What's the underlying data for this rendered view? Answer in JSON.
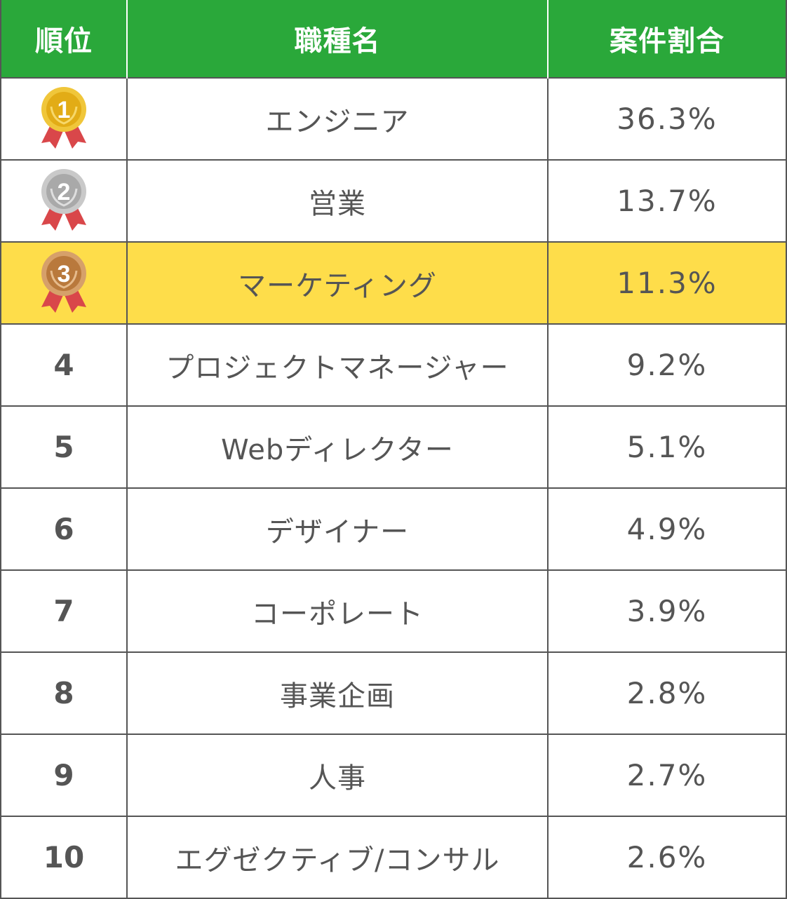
{
  "header": {
    "rank": "順位",
    "job": "職種名",
    "share": "案件割合"
  },
  "colors": {
    "header_bg": "#2aa83a",
    "highlight_row": "#fedd4a",
    "gold": "#e7b61f",
    "silver": "#b4b4b4",
    "bronze": "#c48a4e",
    "ribbon": "#d9474a"
  },
  "rows": [
    {
      "rank": "1",
      "medal": "gold-medal-icon",
      "job": "エンジニア",
      "share": "36.3%"
    },
    {
      "rank": "2",
      "medal": "silver-medal-icon",
      "job": "営業",
      "share": "13.7%"
    },
    {
      "rank": "3",
      "medal": "bronze-medal-icon",
      "job": "マーケティング",
      "share": "11.3%",
      "highlighted": true
    },
    {
      "rank": "4",
      "job": "プロジェクトマネージャー",
      "share": "9.2%"
    },
    {
      "rank": "5",
      "job": "Webディレクター",
      "share": "5.1%"
    },
    {
      "rank": "6",
      "job": "デザイナー",
      "share": "4.9%"
    },
    {
      "rank": "7",
      "job": "コーポレート",
      "share": "3.9%"
    },
    {
      "rank": "8",
      "job": "事業企画",
      "share": "2.8%"
    },
    {
      "rank": "9",
      "job": "人事",
      "share": "2.7%"
    },
    {
      "rank": "10",
      "job": "エグゼクティブ/コンサル",
      "share": "2.6%"
    }
  ]
}
